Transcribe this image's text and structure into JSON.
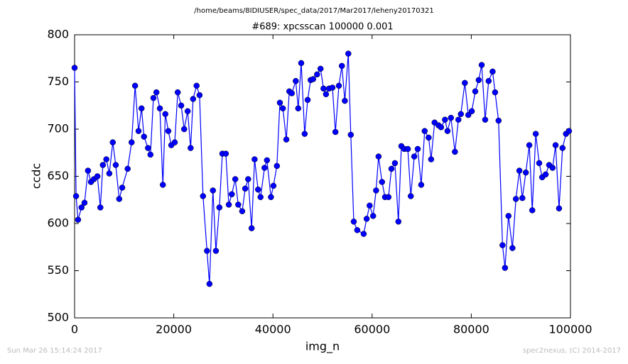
{
  "chart_data": {
    "type": "line",
    "suptitle": "/home/beams/8IDIUSER/spec_data/2017/Mar2017/leheny20170321",
    "title": "#689: xpcsscan 100000 0.001",
    "x_label": "img_n",
    "y_label": "ccdc",
    "footer_left": "Sun Mar 26 15:14:24 2017",
    "footer_right": "spec2nexus, (C) 2014-2017",
    "xlim": [
      0,
      100000
    ],
    "xticks": [
      0,
      20000,
      40000,
      60000,
      80000,
      100000
    ],
    "ylim": [
      500,
      800
    ],
    "yticks": [
      500,
      550,
      600,
      650,
      700,
      750,
      800
    ],
    "grid": false,
    "x": [
      0,
      300,
      700,
      1400,
      2000,
      2700,
      3300,
      3900,
      4600,
      5200,
      5700,
      6400,
      7000,
      7700,
      8300,
      9000,
      9600,
      10700,
      11500,
      12200,
      12900,
      13500,
      14000,
      14800,
      15300,
      15900,
      16500,
      17200,
      17800,
      18300,
      18900,
      19500,
      20200,
      20800,
      21500,
      22100,
      22800,
      23400,
      23900,
      24600,
      25200,
      25900,
      26700,
      27200,
      27900,
      28500,
      29200,
      29800,
      30500,
      31100,
      31700,
      32400,
      33000,
      33800,
      34400,
      35000,
      35700,
      36300,
      37000,
      37500,
      38300,
      38800,
      39600,
      40100,
      40800,
      41400,
      42000,
      42700,
      43300,
      43800,
      44600,
      45100,
      45700,
      46400,
      47000,
      47600,
      48100,
      48900,
      49600,
      50200,
      50700,
      51300,
      52000,
      52600,
      53300,
      53900,
      54500,
      55200,
      55700,
      56300,
      57000,
      58300,
      58900,
      59500,
      60200,
      60800,
      61300,
      62000,
      62600,
      63300,
      63900,
      64600,
      65300,
      65900,
      66500,
      67200,
      67800,
      68500,
      69200,
      69900,
      70600,
      71400,
      71900,
      72600,
      73400,
      73900,
      74700,
      75200,
      75900,
      76700,
      77400,
      77900,
      78700,
      79400,
      80100,
      80800,
      81500,
      82100,
      82800,
      83500,
      84300,
      84800,
      85500,
      86300,
      86800,
      87500,
      88300,
      89000,
      89700,
      90300,
      91000,
      91700,
      92300,
      93000,
      93700,
      94300,
      95000,
      95700,
      96400,
      97000,
      97700,
      98400,
      99100,
      99700
    ],
    "series": [
      {
        "name": "ccdc",
        "color": "#0000ff",
        "values": [
          765,
          629,
          604,
          617,
          622,
          656,
          644,
          647,
          650,
          617,
          662,
          668,
          653,
          686,
          662,
          626,
          638,
          658,
          686,
          746,
          698,
          722,
          692,
          680,
          673,
          733,
          739,
          722,
          641,
          716,
          698,
          683,
          686,
          739,
          725,
          700,
          719,
          680,
          732,
          746,
          736,
          629,
          571,
          536,
          635,
          571,
          617,
          674,
          674,
          620,
          631,
          647,
          620,
          613,
          637,
          647,
          595,
          668,
          636,
          628,
          659,
          667,
          628,
          640,
          661,
          728,
          722,
          689,
          740,
          738,
          751,
          722,
          770,
          695,
          731,
          752,
          753,
          758,
          764,
          743,
          737,
          743,
          744,
          697,
          746,
          767,
          730,
          780,
          694,
          602,
          593,
          589,
          605,
          619,
          608,
          635,
          671,
          644,
          628,
          628,
          658,
          664,
          602,
          682,
          679,
          679,
          629,
          671,
          679,
          641,
          698,
          691,
          668,
          707,
          704,
          702,
          710,
          698,
          712,
          676,
          710,
          716,
          749,
          715,
          719,
          740,
          752,
          768,
          710,
          751,
          761,
          739,
          709,
          577,
          553,
          608,
          574,
          626,
          656,
          627,
          654,
          683,
          614,
          695,
          664,
          649,
          652,
          662,
          659,
          683,
          616,
          680,
          695,
          698
        ]
      }
    ]
  }
}
